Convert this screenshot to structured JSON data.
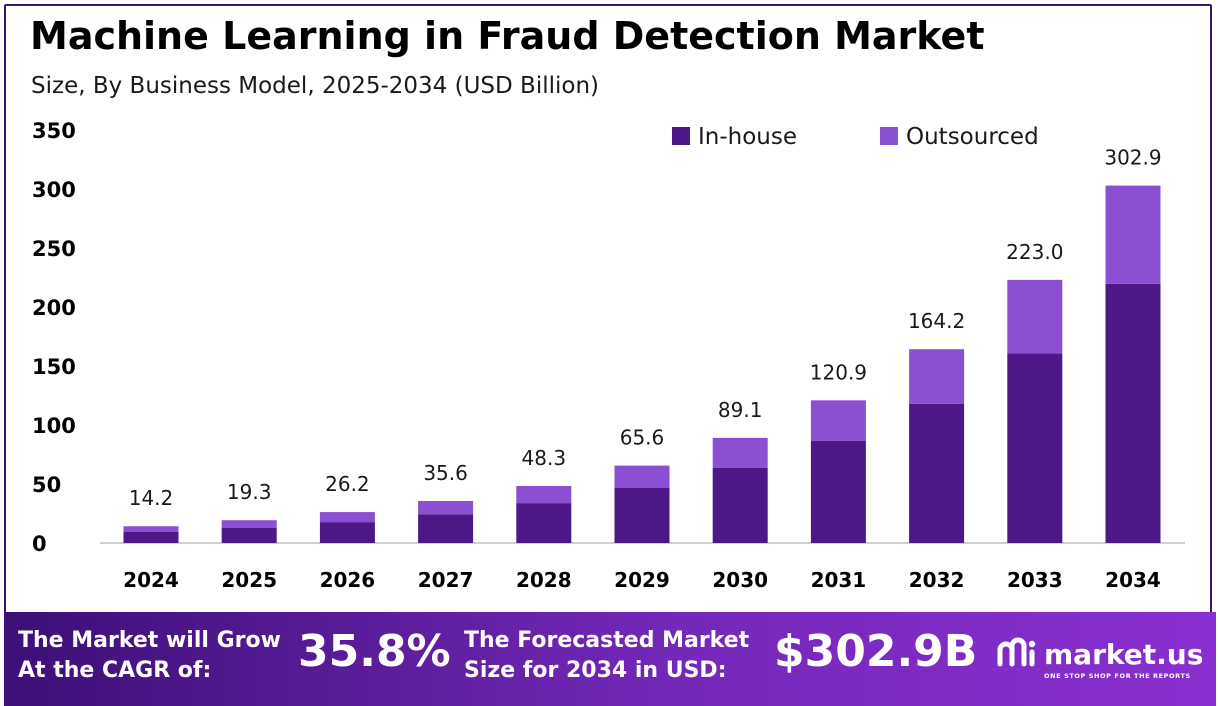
{
  "header": {
    "title": "Machine Learning in Fraud Detection Market",
    "subtitle": "Size, By Business Model, 2025-2034 (USD Billion)"
  },
  "chart_data": {
    "type": "bar",
    "stacked": true,
    "categories": [
      "2024",
      "2025",
      "2026",
      "2027",
      "2028",
      "2029",
      "2030",
      "2031",
      "2032",
      "2033",
      "2034"
    ],
    "series": [
      {
        "name": "In-house",
        "color": "#4e1787",
        "values": [
          9.6,
          13.0,
          17.7,
          24.3,
          33.8,
          46.6,
          63.6,
          86.7,
          118.0,
          160.7,
          219.6
        ]
      },
      {
        "name": "Outsourced",
        "color": "#8a4fd2",
        "values": [
          4.6,
          6.3,
          8.5,
          11.3,
          14.5,
          19.0,
          25.5,
          34.2,
          46.2,
          62.3,
          83.3
        ]
      }
    ],
    "totals": [
      "14.2",
      "19.3",
      "26.2",
      "35.6",
      "48.3",
      "65.6",
      "89.1",
      "120.9",
      "164.2",
      "223.0",
      "302.9"
    ],
    "yticks": [
      "0",
      "50",
      "100",
      "150",
      "200",
      "250",
      "300",
      "350"
    ],
    "ylim": [
      0,
      350
    ],
    "grid": false,
    "legend_position": "top-right"
  },
  "footer": {
    "cagr_label_line1": "The Market will Grow",
    "cagr_label_line2": "At the CAGR of:",
    "cagr_value": "35.8%",
    "forecast_label_line1": "The Forecasted Market",
    "forecast_label_line2": "Size for 2034 in USD:",
    "forecast_value": "$302.9B",
    "brand_name": "market.us",
    "brand_tagline": "ONE STOP SHOP FOR THE REPORTS"
  }
}
